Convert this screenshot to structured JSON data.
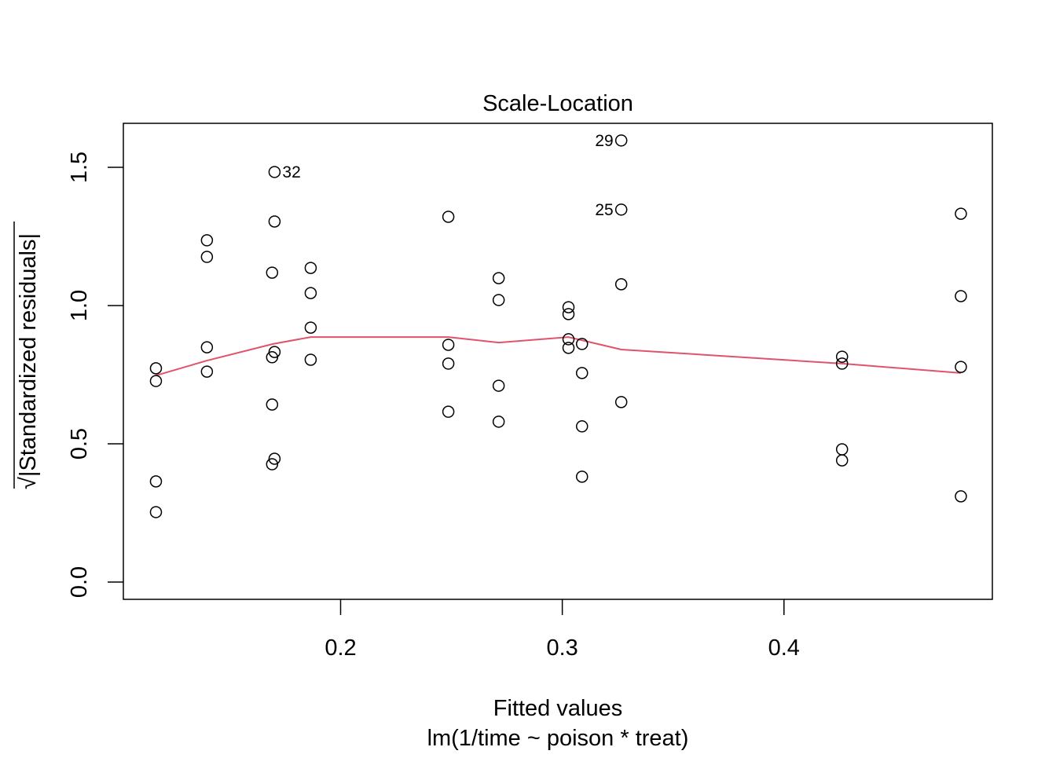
{
  "chart_data": {
    "type": "scatter",
    "title": "Scale-Location",
    "xlabel": "Fitted values",
    "subtitle": "lm(1/time ~ poison * treat)",
    "ylabel": "√|Standardized residuals|",
    "xlim": [
      0.102,
      0.494
    ],
    "ylim": [
      -0.0625,
      1.659
    ],
    "xticks": [
      0.2,
      0.3,
      0.4
    ],
    "xtick_labels": [
      "0.2",
      "0.3",
      "0.4"
    ],
    "yticks": [
      0.0,
      0.5,
      1.0,
      1.5
    ],
    "ytick_labels": [
      "0.0",
      "0.5",
      "1.0",
      "1.5"
    ],
    "grid": false,
    "points": [
      {
        "x": 0.1167,
        "y": 0.773
      },
      {
        "x": 0.1167,
        "y": 0.727
      },
      {
        "x": 0.1167,
        "y": 0.364
      },
      {
        "x": 0.1167,
        "y": 0.253
      },
      {
        "x": 0.1397,
        "y": 1.236
      },
      {
        "x": 0.1397,
        "y": 1.176
      },
      {
        "x": 0.1397,
        "y": 0.849
      },
      {
        "x": 0.1397,
        "y": 0.761
      },
      {
        "x": 0.1702,
        "y": 1.483,
        "label": "32"
      },
      {
        "x": 0.1702,
        "y": 1.304
      },
      {
        "x": 0.1702,
        "y": 0.832
      },
      {
        "x": 0.1702,
        "y": 0.446
      },
      {
        "x": 0.1691,
        "y": 1.119
      },
      {
        "x": 0.1691,
        "y": 0.813
      },
      {
        "x": 0.1691,
        "y": 0.642
      },
      {
        "x": 0.1691,
        "y": 0.426
      },
      {
        "x": 0.1865,
        "y": 1.136
      },
      {
        "x": 0.1865,
        "y": 1.045
      },
      {
        "x": 0.1865,
        "y": 0.92
      },
      {
        "x": 0.1865,
        "y": 0.804
      },
      {
        "x": 0.2486,
        "y": 1.321
      },
      {
        "x": 0.2486,
        "y": 0.858
      },
      {
        "x": 0.2486,
        "y": 0.79
      },
      {
        "x": 0.2486,
        "y": 0.616
      },
      {
        "x": 0.2713,
        "y": 1.099
      },
      {
        "x": 0.2713,
        "y": 1.02
      },
      {
        "x": 0.2713,
        "y": 0.71
      },
      {
        "x": 0.2713,
        "y": 0.58
      },
      {
        "x": 0.3028,
        "y": 0.994
      },
      {
        "x": 0.3028,
        "y": 0.969
      },
      {
        "x": 0.3028,
        "y": 0.878
      },
      {
        "x": 0.3028,
        "y": 0.847
      },
      {
        "x": 0.3089,
        "y": 0.861
      },
      {
        "x": 0.3089,
        "y": 0.756
      },
      {
        "x": 0.3089,
        "y": 0.563
      },
      {
        "x": 0.3089,
        "y": 0.381
      },
      {
        "x": 0.3266,
        "y": 1.597,
        "label": "29"
      },
      {
        "x": 0.3266,
        "y": 1.347,
        "label": "25"
      },
      {
        "x": 0.3266,
        "y": 1.077
      },
      {
        "x": 0.3266,
        "y": 0.651
      },
      {
        "x": 0.4262,
        "y": 0.815
      },
      {
        "x": 0.4262,
        "y": 0.79
      },
      {
        "x": 0.4262,
        "y": 0.48
      },
      {
        "x": 0.4262,
        "y": 0.44
      },
      {
        "x": 0.4798,
        "y": 1.332
      },
      {
        "x": 0.4798,
        "y": 1.034
      },
      {
        "x": 0.4798,
        "y": 0.778
      },
      {
        "x": 0.4798,
        "y": 0.31
      }
    ],
    "smooth_line": {
      "color": "#DF536B",
      "x": [
        0.1167,
        0.1397,
        0.1695,
        0.1865,
        0.2486,
        0.2713,
        0.3028,
        0.3266,
        0.4262,
        0.4798
      ],
      "y": [
        0.747,
        0.801,
        0.861,
        0.886,
        0.886,
        0.866,
        0.886,
        0.841,
        0.79,
        0.756
      ]
    }
  }
}
